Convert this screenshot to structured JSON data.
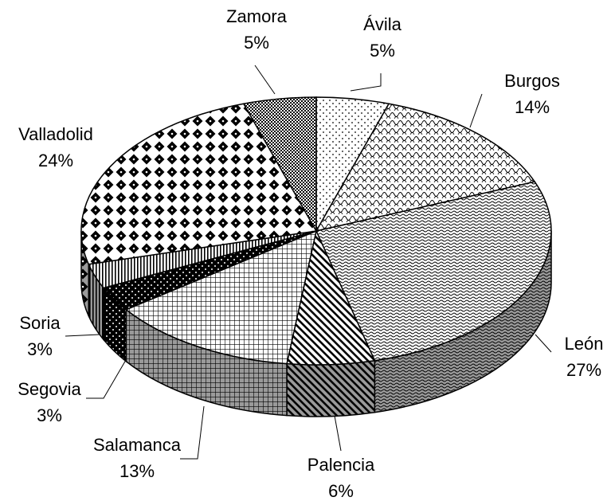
{
  "chart_data": {
    "type": "pie",
    "categories": [
      "Ávila",
      "Burgos",
      "León",
      "Palencia",
      "Salamanca",
      "Segovia",
      "Soria",
      "Valladolid",
      "Zamora"
    ],
    "values": [
      5,
      14,
      27,
      6,
      13,
      3,
      3,
      24,
      5
    ],
    "value_labels": [
      "5%",
      "14%",
      "27%",
      "6%",
      "13%",
      "3%",
      "3%",
      "24%",
      "5%"
    ]
  }
}
